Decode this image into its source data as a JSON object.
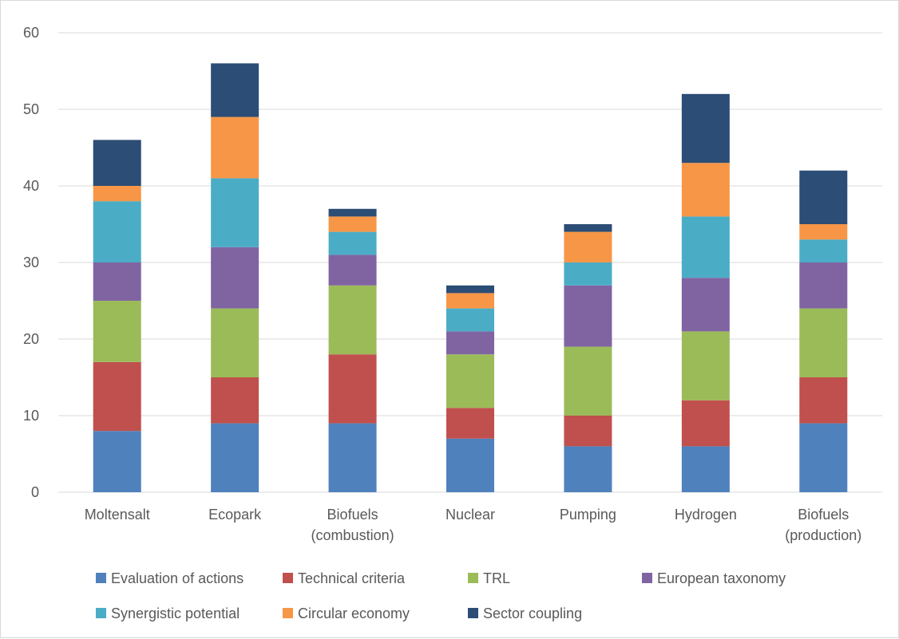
{
  "chart_data": {
    "type": "bar",
    "stacked": true,
    "categories": [
      [
        "Moltensalt"
      ],
      [
        "Ecopark"
      ],
      [
        "Biofuels",
        "(combustion)"
      ],
      [
        "Nuclear"
      ],
      [
        "Pumping"
      ],
      [
        "Hydrogen"
      ],
      [
        "Biofuels",
        "(production)"
      ]
    ],
    "series": [
      {
        "name": "Evaluation of actions",
        "color": "#4f81bd",
        "values": [
          8,
          9,
          9,
          7,
          6,
          6,
          9
        ]
      },
      {
        "name": "Technical criteria",
        "color": "#c0504d",
        "values": [
          9,
          6,
          9,
          4,
          4,
          6,
          6
        ]
      },
      {
        "name": "TRL",
        "color": "#9bbb59",
        "values": [
          8,
          9,
          9,
          7,
          9,
          9,
          9
        ]
      },
      {
        "name": "European taxonomy",
        "color": "#8064a2",
        "values": [
          5,
          8,
          4,
          3,
          8,
          7,
          6
        ]
      },
      {
        "name": "Synergistic potential",
        "color": "#4bacc6",
        "values": [
          8,
          9,
          3,
          3,
          3,
          8,
          3
        ]
      },
      {
        "name": "Circular economy",
        "color": "#f79646",
        "values": [
          2,
          8,
          2,
          2,
          4,
          7,
          2
        ]
      },
      {
        "name": "Sector coupling",
        "color": "#2c4d75",
        "values": [
          6,
          7,
          1,
          1,
          1,
          9,
          7
        ]
      }
    ],
    "ylim": [
      0,
      60
    ],
    "yticks": [
      0,
      10,
      20,
      30,
      40,
      50,
      60
    ],
    "grid": true,
    "legend_position": "bottom",
    "title": "",
    "xlabel": "",
    "ylabel": ""
  }
}
